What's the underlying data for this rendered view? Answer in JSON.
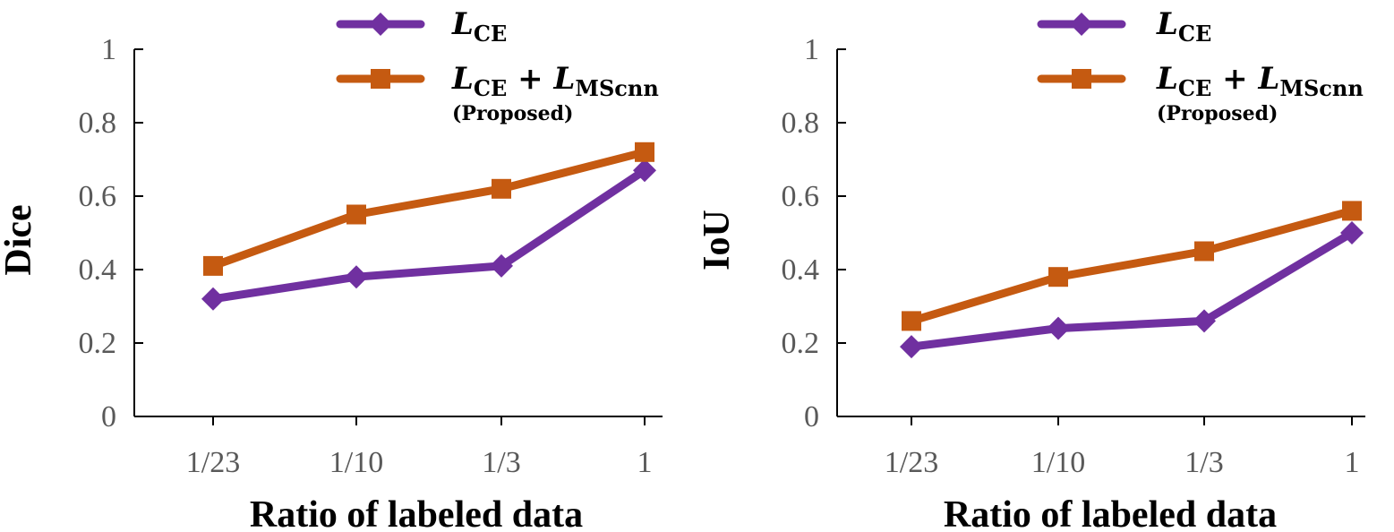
{
  "chart_data": [
    {
      "type": "line",
      "xlabel": "Ratio of labeled data",
      "ylabel": "Dice",
      "categories": [
        "1/23",
        "1/10",
        "1/3",
        "1"
      ],
      "ylim": [
        0,
        1
      ],
      "yticks": [
        "0",
        "0.2",
        "0.4",
        "0.6",
        "0.8",
        "1"
      ],
      "grid": false,
      "legend_position": "top",
      "series": [
        {
          "name": "L_CE",
          "label_main": "L",
          "label_sub": "CE",
          "color": "#7030A0",
          "marker": "diamond",
          "values": [
            0.32,
            0.38,
            0.41,
            0.67
          ]
        },
        {
          "name": "L_CE + L_MScnn (Proposed)",
          "label_main": "L",
          "label_sub": "CE",
          "label_plus": " + L",
          "label_sub2": "MScnn",
          "label_note": "(Proposed)",
          "color": "#C55A11",
          "marker": "square",
          "values": [
            0.41,
            0.55,
            0.62,
            0.72
          ]
        }
      ]
    },
    {
      "type": "line",
      "xlabel": "Ratio of labeled data",
      "ylabel": "IoU",
      "categories": [
        "1/23",
        "1/10",
        "1/3",
        "1"
      ],
      "ylim": [
        0,
        1
      ],
      "yticks": [
        "0",
        "0.2",
        "0.4",
        "0.6",
        "0.8",
        "1"
      ],
      "grid": false,
      "legend_position": "top",
      "series": [
        {
          "name": "L_CE",
          "label_main": "L",
          "label_sub": "CE",
          "color": "#7030A0",
          "marker": "diamond",
          "values": [
            0.19,
            0.24,
            0.26,
            0.5
          ]
        },
        {
          "name": "L_CE + L_MScnn (Proposed)",
          "label_main": "L",
          "label_sub": "CE",
          "label_plus": " + L",
          "label_sub2": "MScnn",
          "label_note": "(Proposed)",
          "color": "#C55A11",
          "marker": "square",
          "values": [
            0.26,
            0.38,
            0.45,
            0.56
          ]
        }
      ]
    }
  ]
}
